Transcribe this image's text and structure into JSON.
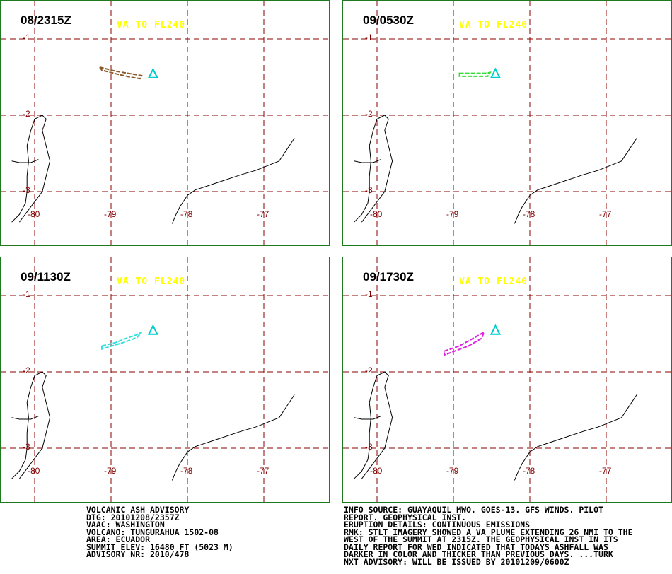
{
  "panels": [
    {
      "time": "08/2315Z",
      "va_label": "VA TO FL240",
      "plume_color": "#8a5a2b",
      "plume": [
        [
          -79.15,
          -1.37
        ],
        [
          -78.95,
          -1.42
        ],
        [
          -78.78,
          -1.45
        ],
        [
          -78.66,
          -1.47
        ],
        [
          -78.6,
          -1.48
        ],
        [
          -78.62,
          -1.52
        ],
        [
          -78.75,
          -1.5
        ],
        [
          -78.92,
          -1.46
        ],
        [
          -79.12,
          -1.41
        ]
      ]
    },
    {
      "time": "09/0530Z",
      "va_label": "VA TO FL240",
      "plume_color": "#33dd33",
      "plume": [
        [
          -78.92,
          -1.45
        ],
        [
          -78.78,
          -1.45
        ],
        [
          -78.66,
          -1.45
        ],
        [
          -78.58,
          -1.45
        ],
        [
          -78.52,
          -1.44
        ],
        [
          -78.55,
          -1.49
        ],
        [
          -78.72,
          -1.49
        ],
        [
          -78.92,
          -1.49
        ]
      ]
    },
    {
      "time": "09/1130Z",
      "va_label": "VA TO FL240",
      "plume_color": "#33e0e0",
      "plume": [
        [
          -79.12,
          -1.66
        ],
        [
          -78.95,
          -1.62
        ],
        [
          -78.8,
          -1.56
        ],
        [
          -78.68,
          -1.52
        ],
        [
          -78.6,
          -1.48
        ],
        [
          -78.66,
          -1.55
        ],
        [
          -78.82,
          -1.61
        ],
        [
          -79.12,
          -1.7
        ]
      ]
    },
    {
      "time": "09/1730Z",
      "va_label": "VA TO FL240",
      "plume_color": "#e020e0",
      "plume": [
        [
          -79.12,
          -1.73
        ],
        [
          -78.92,
          -1.66
        ],
        [
          -78.74,
          -1.56
        ],
        [
          -78.6,
          -1.48
        ],
        [
          -78.63,
          -1.56
        ],
        [
          -78.8,
          -1.66
        ],
        [
          -79.12,
          -1.78
        ]
      ]
    }
  ],
  "volcano": {
    "lon": -78.45,
    "lat": -1.47,
    "color": "#00cccc"
  },
  "lat_lines": [
    -1,
    -2,
    -3
  ],
  "lon_lines": [
    -80,
    -79,
    -78,
    -77
  ],
  "lat_labels": [
    "-1",
    "-2",
    "-3"
  ],
  "lon_labels": [
    "-80",
    "-79",
    "-78",
    "-77"
  ],
  "coastline": [
    [
      -80.3,
      -3.4
    ],
    [
      -80.2,
      -3.3
    ],
    [
      -80.12,
      -3.15
    ],
    [
      -80.1,
      -3.0
    ],
    [
      -80.1,
      -2.8
    ],
    [
      -80.08,
      -2.6
    ],
    [
      -80.1,
      -2.4
    ],
    [
      -80.05,
      -2.2
    ],
    [
      -80.0,
      -2.05
    ],
    [
      -79.9,
      -2.0
    ],
    [
      -79.85,
      -2.05
    ],
    [
      -79.9,
      -2.2
    ],
    [
      -79.85,
      -2.4
    ],
    [
      -79.8,
      -2.6
    ],
    [
      -79.85,
      -2.8
    ],
    [
      -79.9,
      -3.0
    ],
    [
      -80.05,
      -3.2
    ],
    [
      -80.2,
      -3.4
    ]
  ],
  "river": [
    [
      -80.3,
      -2.6
    ],
    [
      -80.2,
      -2.62
    ],
    [
      -80.05,
      -2.62
    ],
    [
      -79.95,
      -2.58
    ]
  ],
  "border": [
    [
      -78.2,
      -3.42
    ],
    [
      -78.15,
      -3.3
    ],
    [
      -78.1,
      -3.2
    ],
    [
      -78.0,
      -3.05
    ],
    [
      -77.9,
      -2.98
    ],
    [
      -77.6,
      -2.88
    ],
    [
      -77.3,
      -2.78
    ],
    [
      -77.1,
      -2.72
    ],
    [
      -76.8,
      -2.6
    ],
    [
      -76.6,
      -2.3
    ]
  ],
  "left_block": {
    "lines": [
      "VOLCANIC ASH ADVISORY",
      "DTG: 20101208/2357Z",
      "VAAC: WASHINGTON",
      "VOLCANO: TUNGURAHUA 1502-08",
      "AREA: ECUADOR",
      "SUMMIT ELEV: 16480 FT (5023 M)",
      "ADVISORY NR: 2010/478"
    ]
  },
  "right_block": {
    "lines": [
      "INFO SOURCE: GUAYAQUIL MWO. GOES-13. GFS WINDS. PILOT",
      "REPORT. GEOPHYSICAL INST.",
      "ERUPTION DETAILS: CONTINUOUS EMISSIONS",
      "RMK: STLT IMAGERY SHOWED A VA PLUME EXTENDING 26 NMI TO THE",
      "WEST OF THE SUMMIT AT 2315Z. THE GEOPHYSICAL INST IN ITS",
      "DAILY REPORT FOR WED INDICATED THAT TODAYS ASHFALL WAS",
      "DARKER IN COLOR AND THICKER THAN PREVIOUS DAYS. ...TURK",
      "NXT ADVISORY: WILL BE ISSUED BY 20101209/0600Z"
    ]
  }
}
